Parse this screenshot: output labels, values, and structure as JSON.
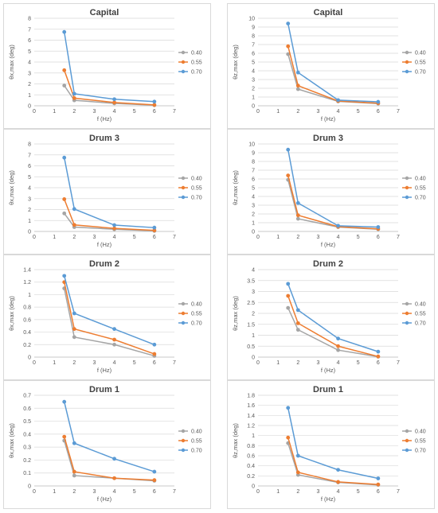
{
  "legend_colors": {
    "0.40": "#a5a5a5",
    "0.55": "#ed7d31",
    "0.70": "#5b9bd5"
  },
  "chart_data": [
    {
      "type": "line",
      "title": "Capital",
      "xlabel": "f (Hz)",
      "ylabel": "θx,max (deg)",
      "xlim": [
        0,
        7
      ],
      "xticks": [
        0,
        1,
        2,
        3,
        4,
        5,
        6,
        7
      ],
      "ylim": [
        0,
        8
      ],
      "yticks": [
        0,
        1,
        2,
        3,
        4,
        5,
        6,
        7,
        8
      ],
      "ytick_labels": [
        "0",
        "1",
        "2",
        "3",
        "4",
        "5",
        "6",
        "7",
        "8"
      ],
      "grid": true,
      "legend": "right",
      "x": [
        1.5,
        2,
        4,
        6
      ],
      "series": [
        {
          "name": "0.40",
          "color": "#a5a5a5",
          "values": [
            1.85,
            0.5,
            0.22,
            0.05
          ]
        },
        {
          "name": "0.55",
          "color": "#ed7d31",
          "values": [
            3.25,
            0.7,
            0.3,
            0.08
          ]
        },
        {
          "name": "0.70",
          "color": "#5b9bd5",
          "values": [
            6.75,
            1.1,
            0.6,
            0.38
          ]
        }
      ]
    },
    {
      "type": "line",
      "title": "Capital",
      "xlabel": "f (Hz)",
      "ylabel": "θz,max (deg)",
      "xlim": [
        0,
        7
      ],
      "xticks": [
        0,
        1,
        2,
        3,
        4,
        5,
        6,
        7
      ],
      "ylim": [
        0,
        10
      ],
      "yticks": [
        0,
        1,
        2,
        3,
        4,
        5,
        6,
        7,
        8,
        9,
        10
      ],
      "ytick_labels": [
        "0",
        "1",
        "2",
        "3",
        "4",
        "5",
        "6",
        "7",
        "8",
        "9",
        "10"
      ],
      "grid": true,
      "legend": "right",
      "x": [
        1.5,
        2,
        4,
        6
      ],
      "series": [
        {
          "name": "0.40",
          "color": "#a5a5a5",
          "values": [
            5.9,
            1.9,
            0.5,
            0.25
          ]
        },
        {
          "name": "0.55",
          "color": "#ed7d31",
          "values": [
            6.8,
            2.3,
            0.55,
            0.3
          ]
        },
        {
          "name": "0.70",
          "color": "#5b9bd5",
          "values": [
            9.4,
            3.8,
            0.65,
            0.45
          ]
        }
      ]
    },
    {
      "type": "line",
      "title": "Drum 3",
      "xlabel": "f (Hz)",
      "ylabel": "θx,max (deg)",
      "xlim": [
        0,
        7
      ],
      "xticks": [
        0,
        1,
        2,
        3,
        4,
        5,
        6,
        7
      ],
      "ylim": [
        0,
        8
      ],
      "yticks": [
        0,
        1,
        2,
        3,
        4,
        5,
        6,
        7,
        8
      ],
      "ytick_labels": [
        "0",
        "1",
        "2",
        "3",
        "4",
        "5",
        "6",
        "7",
        "8"
      ],
      "grid": true,
      "legend": "right",
      "x": [
        1.5,
        2,
        4,
        6
      ],
      "series": [
        {
          "name": "0.40",
          "color": "#a5a5a5",
          "values": [
            1.65,
            0.4,
            0.2,
            0.05
          ]
        },
        {
          "name": "0.55",
          "color": "#ed7d31",
          "values": [
            2.95,
            0.6,
            0.28,
            0.1
          ]
        },
        {
          "name": "0.70",
          "color": "#5b9bd5",
          "values": [
            6.75,
            2.05,
            0.58,
            0.35
          ]
        }
      ]
    },
    {
      "type": "line",
      "title": "Drum 3",
      "xlabel": "f (Hz)",
      "ylabel": "θz,max (deg)",
      "xlim": [
        0,
        7
      ],
      "xticks": [
        0,
        1,
        2,
        3,
        4,
        5,
        6,
        7
      ],
      "ylim": [
        0,
        10
      ],
      "yticks": [
        0,
        1,
        2,
        3,
        4,
        5,
        6,
        7,
        8,
        9,
        10
      ],
      "ytick_labels": [
        "0",
        "1",
        "2",
        "3",
        "4",
        "5",
        "6",
        "7",
        "8",
        "9",
        "10"
      ],
      "grid": true,
      "legend": "right",
      "x": [
        1.5,
        2,
        4,
        6
      ],
      "series": [
        {
          "name": "0.40",
          "color": "#a5a5a5",
          "values": [
            5.9,
            1.45,
            0.5,
            0.25
          ]
        },
        {
          "name": "0.55",
          "color": "#ed7d31",
          "values": [
            6.4,
            1.85,
            0.55,
            0.3
          ]
        },
        {
          "name": "0.70",
          "color": "#5b9bd5",
          "values": [
            9.35,
            3.25,
            0.65,
            0.5
          ]
        }
      ]
    },
    {
      "type": "line",
      "title": "Drum 2",
      "xlabel": "f (Hz)",
      "ylabel": "θx,max (deg)",
      "xlim": [
        0,
        7
      ],
      "xticks": [
        0,
        1,
        2,
        3,
        4,
        5,
        6,
        7
      ],
      "ylim": [
        0,
        1.4
      ],
      "yticks": [
        0,
        0.2,
        0.4,
        0.6,
        0.8,
        1,
        1.2,
        1.4
      ],
      "ytick_labels": [
        "0",
        "0.2",
        "0.4",
        "0.6",
        "0.8",
        "1",
        "1.2",
        "1.4"
      ],
      "grid": true,
      "legend": "right",
      "x": [
        1.5,
        2,
        4,
        6
      ],
      "series": [
        {
          "name": "0.40",
          "color": "#a5a5a5",
          "values": [
            1.1,
            0.32,
            0.2,
            0.02
          ]
        },
        {
          "name": "0.55",
          "color": "#ed7d31",
          "values": [
            1.2,
            0.45,
            0.28,
            0.05
          ]
        },
        {
          "name": "0.70",
          "color": "#5b9bd5",
          "values": [
            1.3,
            0.7,
            0.45,
            0.2
          ]
        }
      ]
    },
    {
      "type": "line",
      "title": "Drum 2",
      "xlabel": "f (Hz)",
      "ylabel": "θz,max (deg)",
      "xlim": [
        0,
        7
      ],
      "xticks": [
        0,
        1,
        2,
        3,
        4,
        5,
        6,
        7
      ],
      "ylim": [
        0,
        4
      ],
      "yticks": [
        0,
        0.5,
        1,
        1.5,
        2,
        2.5,
        3,
        3.5,
        4
      ],
      "ytick_labels": [
        "0",
        "0.5",
        "1",
        "1.5",
        "2",
        "2.5",
        "3",
        "3.5",
        "4"
      ],
      "grid": true,
      "legend": "right",
      "x": [
        1.5,
        2,
        4,
        6
      ],
      "series": [
        {
          "name": "0.40",
          "color": "#a5a5a5",
          "values": [
            2.25,
            1.25,
            0.32,
            0.02
          ]
        },
        {
          "name": "0.55",
          "color": "#ed7d31",
          "values": [
            2.8,
            1.55,
            0.5,
            0.03
          ]
        },
        {
          "name": "0.70",
          "color": "#5b9bd5",
          "values": [
            3.35,
            2.15,
            0.85,
            0.25
          ]
        }
      ]
    },
    {
      "type": "line",
      "title": "Drum 1",
      "xlabel": "f (Hz)",
      "ylabel": "θx,max (deg)",
      "xlim": [
        0,
        7
      ],
      "xticks": [
        0,
        1,
        2,
        3,
        4,
        5,
        6,
        7
      ],
      "ylim": [
        0,
        0.7
      ],
      "yticks": [
        0,
        0.1,
        0.2,
        0.3,
        0.4,
        0.5,
        0.6,
        0.7
      ],
      "ytick_labels": [
        "0",
        "0.1",
        "0.2",
        "0.3",
        "0.4",
        "0.5",
        "0.6",
        "0.7"
      ],
      "grid": true,
      "legend": "right",
      "x": [
        1.5,
        2,
        4,
        6
      ],
      "series": [
        {
          "name": "0.40",
          "color": "#a5a5a5",
          "values": [
            0.35,
            0.08,
            0.06,
            0.04
          ]
        },
        {
          "name": "0.55",
          "color": "#ed7d31",
          "values": [
            0.38,
            0.11,
            0.06,
            0.045
          ]
        },
        {
          "name": "0.70",
          "color": "#5b9bd5",
          "values": [
            0.65,
            0.33,
            0.21,
            0.11
          ]
        }
      ]
    },
    {
      "type": "line",
      "title": "Drum 1",
      "xlabel": "f (Hz)",
      "ylabel": "θz,max (deg)",
      "xlim": [
        0,
        7
      ],
      "xticks": [
        0,
        1,
        2,
        3,
        4,
        5,
        6,
        7
      ],
      "ylim": [
        0,
        1.8
      ],
      "yticks": [
        0,
        0.2,
        0.4,
        0.6,
        0.8,
        1,
        1.2,
        1.4,
        1.6,
        1.8
      ],
      "ytick_labels": [
        "0",
        "0.2",
        "0.4",
        "0.6",
        "0.8",
        "1",
        "1.2",
        "1.4",
        "1.6",
        "1.8"
      ],
      "grid": true,
      "legend": "right",
      "x": [
        1.5,
        2,
        4,
        6
      ],
      "series": [
        {
          "name": "0.40",
          "color": "#a5a5a5",
          "values": [
            0.85,
            0.22,
            0.07,
            0.02
          ]
        },
        {
          "name": "0.55",
          "color": "#ed7d31",
          "values": [
            0.96,
            0.27,
            0.08,
            0.03
          ]
        },
        {
          "name": "0.70",
          "color": "#5b9bd5",
          "values": [
            1.55,
            0.6,
            0.32,
            0.15
          ]
        }
      ]
    }
  ]
}
